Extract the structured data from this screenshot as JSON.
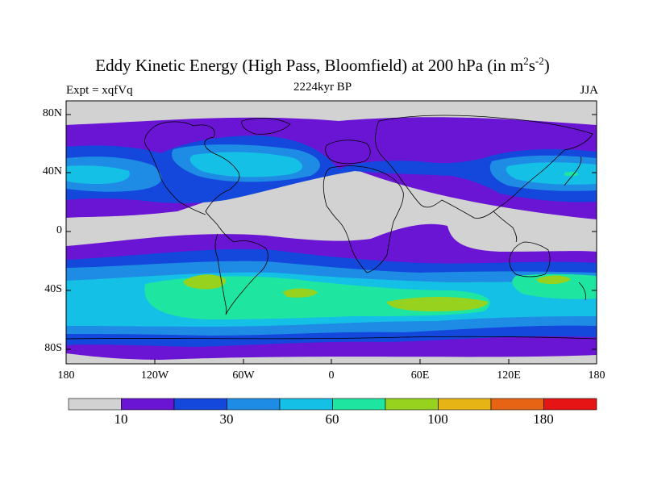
{
  "title": "Eddy Kinetic Energy (High Pass, Bloomfield) at 200 hPa (in m",
  "title_sup1": "2",
  "title_mid": "s",
  "title_sup2": "-2",
  "title_end": ")",
  "subtitle": "2224kyr BP",
  "left_label": "Expt = xqfVq",
  "right_label": "JJA",
  "lat_labels": [
    "80N",
    "40N",
    "0",
    "40S",
    "80S"
  ],
  "lon_labels": [
    "180",
    "120W",
    "60W",
    "0",
    "60E",
    "120E",
    "180"
  ],
  "colorbar": {
    "colors": [
      "#d2d2d2",
      "#6a14d4",
      "#1448dc",
      "#1e8ce4",
      "#14c0e6",
      "#1ee6a0",
      "#96d21e",
      "#e6b414",
      "#e66414",
      "#e61414"
    ],
    "labels": [
      "10",
      "30",
      "60",
      "100",
      "180"
    ]
  },
  "colors": {
    "land_outline": "#000000",
    "background": "#ffffff"
  }
}
